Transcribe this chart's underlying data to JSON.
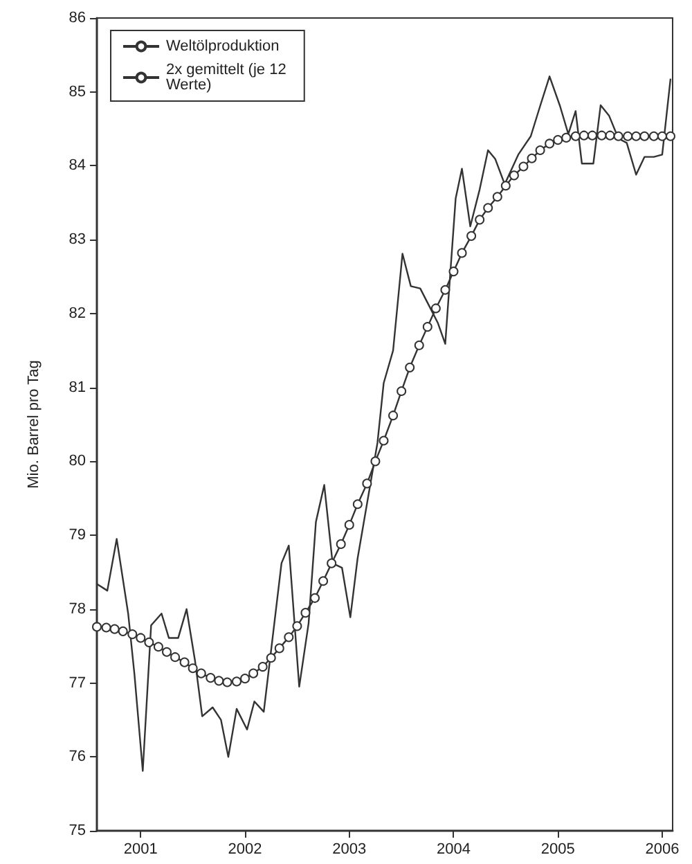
{
  "chart_data": {
    "type": "line",
    "ylabel": "Mio. Barrel pro Tag",
    "xlim": [
      2000.58,
      2006.1
    ],
    "xticks": [
      2001,
      2002,
      2003,
      2004,
      2005,
      2006
    ],
    "ylim": [
      75,
      86
    ],
    "yticks": [
      75,
      76,
      77,
      78,
      79,
      80,
      81,
      82,
      83,
      84,
      85,
      86
    ],
    "grid": false,
    "legend": "top left",
    "line_style": "solid",
    "series": [
      {
        "name": "Weltölproduktion",
        "color": "#333333",
        "marker": "none",
        "x": [
          2000.58,
          2000.68,
          2000.77,
          2000.88,
          2000.94,
          2001.02,
          2001.1,
          2001.2,
          2001.27,
          2001.36,
          2001.44,
          2001.52,
          2001.59,
          2001.69,
          2001.77,
          2001.84,
          2001.92,
          2002.02,
          2002.09,
          2002.18,
          2002.35,
          2002.42,
          2002.52,
          2002.61,
          2002.68,
          2002.76,
          2002.84,
          2002.93,
          2003.01,
          2003.08,
          2003.27,
          2003.33,
          2003.42,
          2003.51,
          2003.59,
          2003.68,
          2003.76,
          2003.85,
          2003.92,
          2004.02,
          2004.08,
          2004.16,
          2004.25,
          2004.33,
          2004.4,
          2004.49,
          2004.62,
          2004.74,
          2004.83,
          2004.92,
          2005.02,
          2005.1,
          2005.17,
          2005.23,
          2005.34,
          2005.41,
          2005.49,
          2005.58,
          2005.66,
          2005.75,
          2005.83,
          2005.92,
          2006.0,
          2006.08
        ],
        "values": [
          78.34,
          78.25,
          78.95,
          77.94,
          77.12,
          75.81,
          77.78,
          77.94,
          77.61,
          77.61,
          78.0,
          77.31,
          76.55,
          76.67,
          76.5,
          76.0,
          76.65,
          76.37,
          76.75,
          76.61,
          78.62,
          78.86,
          76.95,
          77.81,
          79.18,
          79.68,
          78.62,
          78.56,
          77.89,
          78.69,
          80.25,
          81.06,
          81.5,
          82.81,
          82.37,
          82.34,
          82.12,
          81.87,
          81.59,
          83.56,
          83.96,
          83.18,
          83.68,
          84.21,
          84.09,
          83.75,
          84.15,
          84.4,
          84.81,
          85.21,
          84.81,
          84.43,
          84.74,
          84.03,
          84.03,
          84.82,
          84.68,
          84.37,
          84.31,
          83.88,
          84.12,
          84.12,
          84.15,
          85.18
        ]
      },
      {
        "name": "2x gemittelt (je 12 Werte)",
        "color": "#333333",
        "marker": "circle",
        "x": [
          2000.58,
          2000.67,
          2000.75,
          2000.83,
          2000.92,
          2001.0,
          2001.08,
          2001.17,
          2001.25,
          2001.33,
          2001.42,
          2001.5,
          2001.58,
          2001.67,
          2001.75,
          2001.83,
          2001.92,
          2002.0,
          2002.08,
          2002.17,
          2002.25,
          2002.33,
          2002.42,
          2002.5,
          2002.58,
          2002.67,
          2002.75,
          2002.83,
          2002.92,
          2003.0,
          2003.08,
          2003.17,
          2003.25,
          2003.33,
          2003.42,
          2003.5,
          2003.58,
          2003.67,
          2003.75,
          2003.83,
          2003.92,
          2004.0,
          2004.08,
          2004.17,
          2004.25,
          2004.33,
          2004.42,
          2004.5,
          2004.58,
          2004.67,
          2004.75,
          2004.83,
          2004.92,
          2005.0,
          2005.08,
          2005.17,
          2005.25,
          2005.33,
          2005.42,
          2005.5,
          2005.58,
          2005.67,
          2005.75,
          2005.83,
          2005.92,
          2006.0,
          2006.08
        ],
        "values": [
          77.76,
          77.75,
          77.73,
          77.7,
          77.66,
          77.61,
          77.55,
          77.49,
          77.42,
          77.35,
          77.28,
          77.2,
          77.13,
          77.07,
          77.03,
          77.01,
          77.02,
          77.06,
          77.13,
          77.22,
          77.34,
          77.47,
          77.62,
          77.77,
          77.95,
          78.15,
          78.38,
          78.62,
          78.88,
          79.14,
          79.42,
          79.7,
          80.0,
          80.28,
          80.62,
          80.95,
          81.27,
          81.57,
          81.82,
          82.07,
          82.32,
          82.57,
          82.82,
          83.05,
          83.27,
          83.43,
          83.58,
          83.73,
          83.87,
          83.99,
          84.1,
          84.21,
          84.3,
          84.35,
          84.38,
          84.4,
          84.41,
          84.41,
          84.41,
          84.41,
          84.4,
          84.4,
          84.4,
          84.4,
          84.4,
          84.4,
          84.4
        ]
      }
    ]
  }
}
